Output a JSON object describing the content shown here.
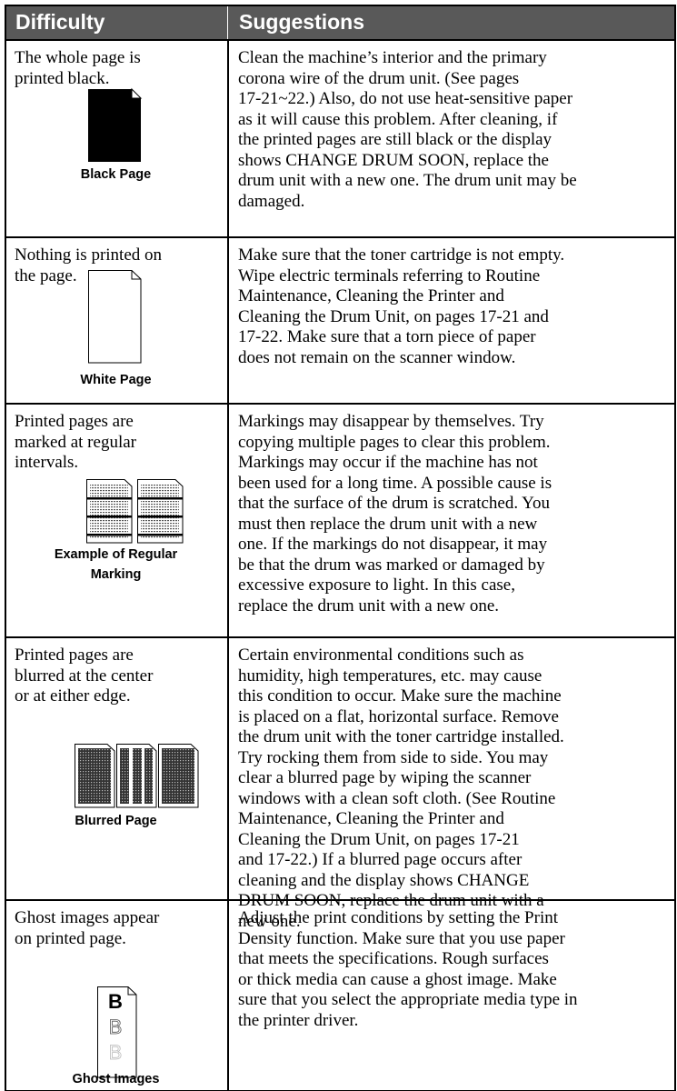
{
  "header": {
    "difficulty": "Difficulty",
    "suggestions": "Suggestions"
  },
  "rows": [
    {
      "difficulty": [
        "The whole page is",
        "printed black."
      ],
      "caption": [
        "Black Page"
      ],
      "suggestions": [
        "Clean the machine’s interior and the primary",
        "corona wire of the drum unit. (See pages",
        "17-21~22.) Also, do not use heat-sensitive paper",
        "as it will cause this problem. After cleaning, if",
        "the printed pages are still black or the display",
        "shows CHANGE DRUM SOON, replace the",
        "drum unit with a new one. The drum unit may be",
        "damaged."
      ]
    },
    {
      "difficulty": [
        "Nothing is printed on",
        "the page."
      ],
      "caption": [
        "White Page"
      ],
      "suggestions": [
        "Make sure that the toner cartridge is not empty.",
        "Wipe electric terminals referring to Routine",
        "Maintenance, Cleaning the Printer and",
        "Cleaning the Drum Unit, on pages 17-21 and",
        "17-22. Make sure that a torn piece of paper",
        "does not remain on the scanner window."
      ]
    },
    {
      "difficulty": [
        "Printed pages are",
        "marked at regular",
        "intervals."
      ],
      "caption": [
        "Example of Regular",
        "Marking"
      ],
      "suggestions": [
        "Markings may disappear by themselves. Try",
        "copying multiple pages to clear this problem.",
        "Markings may occur if the machine has not",
        "been used for a long time. A possible cause is",
        "that the surface of the drum is scratched. You",
        "must then replace the drum unit with a new",
        "one.  If the markings do not disappear, it may",
        "be that the drum was marked or damaged by",
        "excessive exposure to light. In this case,",
        "replace the drum unit with a new one."
      ]
    },
    {
      "difficulty": [
        "Printed pages are",
        "blurred at the center",
        "or at either edge."
      ],
      "caption": [
        "Blurred Page"
      ],
      "suggestions": [
        "Certain environmental conditions such as",
        "humidity, high temperatures, etc. may cause",
        "this condition to occur.  Make sure the machine",
        "is placed on a flat, horizontal surface. Remove",
        "the drum unit with the toner cartridge installed.",
        "Try rocking them from side to side. You may",
        "clear a blurred page by wiping the scanner",
        "windows with a clean soft cloth. (See Routine",
        "Maintenance, Cleaning the Printer and",
        "Cleaning the Drum Unit, on pages 17-21",
        "and 17-22.)  If a blurred page occurs after",
        "cleaning and the display shows CHANGE",
        "DRUM SOON, replace the drum unit with a",
        "new one."
      ]
    },
    {
      "difficulty": [
        "Ghost images appear",
        "on printed page."
      ],
      "caption": [
        "Ghost Images"
      ],
      "ghost_letter": "B",
      "suggestions": [
        "Adjust the print conditions by setting the Print",
        "Density function. Make sure that you use paper",
        "that meets the specifications.  Rough surfaces",
        "or thick media can cause a ghost image. Make",
        "sure that you select the appropriate media type in",
        "the printer driver."
      ]
    }
  ]
}
